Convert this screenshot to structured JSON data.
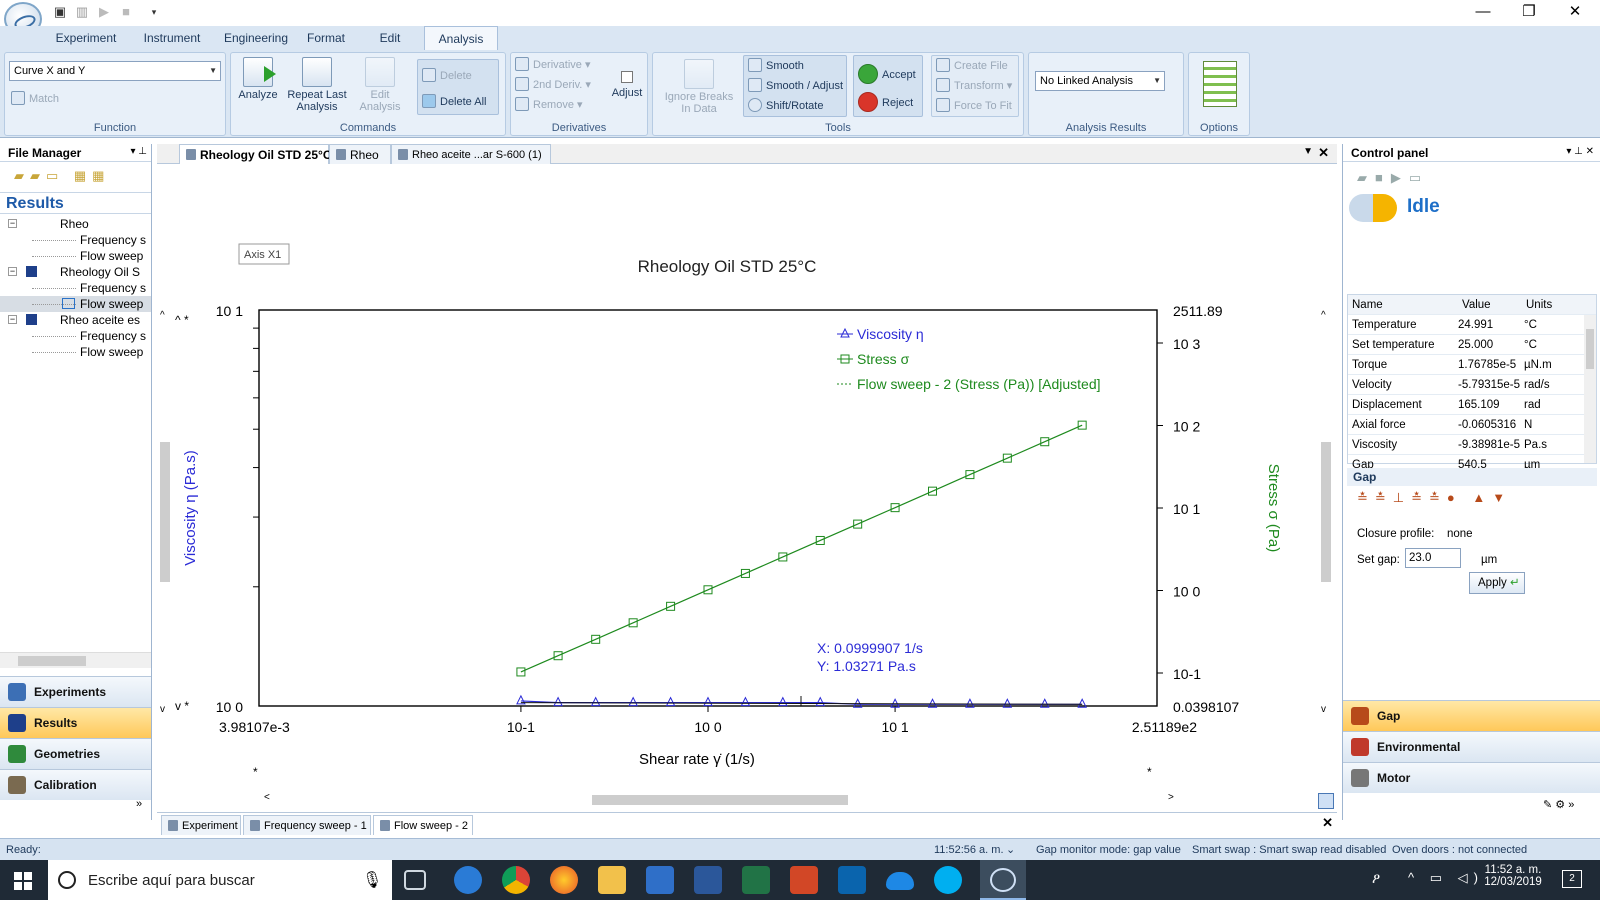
{
  "ribbon": {
    "tabs": [
      "Experiment",
      "Instrument",
      "Engineering",
      "Format",
      "Edit",
      "Analysis"
    ],
    "active_tab": "Analysis",
    "function": {
      "combo_value": "Curve X and Y",
      "match_label": "Match",
      "group_label": "Function"
    },
    "commands": {
      "analyze": "Analyze",
      "repeat_last_1": "Repeat Last",
      "repeat_last_2": "Analysis",
      "edit_1": "Edit",
      "edit_2": "Analysis",
      "delete": "Delete",
      "delete_all": "Delete All",
      "group_label": "Commands"
    },
    "derivatives": {
      "derivative": "Derivative",
      "second_deriv": "2nd Deriv.",
      "remove": "Remove",
      "adjust": "Adjust",
      "group_label": "Derivatives"
    },
    "tools": {
      "ignore_1": "Ignore Breaks",
      "ignore_2": "In Data",
      "smooth": "Smooth",
      "smooth_adjust": "Smooth / Adjust",
      "shift_rotate": "Shift/Rotate",
      "accept": "Accept",
      "reject": "Reject",
      "create_file": "Create File",
      "transform": "Transform",
      "force_to_fit": "Force To Fit",
      "group_label": "Tools"
    },
    "analysis_results": {
      "combo_value": "No Linked Analysis",
      "group_label": "Analysis Results"
    },
    "options": {
      "group_label": "Options"
    }
  },
  "file_manager": {
    "title": "File Manager",
    "results_header": "Results",
    "tree": [
      {
        "label": "Rheo",
        "level": 0
      },
      {
        "label": "Frequency s",
        "level": 1
      },
      {
        "label": "Flow sweep",
        "level": 1
      },
      {
        "label": "Rheology Oil S",
        "level": 0
      },
      {
        "label": "Frequency s",
        "level": 1
      },
      {
        "label": "Flow sweep",
        "level": 1
      },
      {
        "label": "Rheo aceite es",
        "level": 0
      },
      {
        "label": "Frequency s",
        "level": 1
      },
      {
        "label": "Flow sweep",
        "level": 1
      }
    ],
    "nav": [
      "Experiments",
      "Results",
      "Geometries",
      "Calibration"
    ],
    "nav_selected": "Results"
  },
  "doc": {
    "tabs": [
      "Rheology Oil STD 25°C",
      "Rheo",
      "Rheo aceite ...ar S-600 (1)"
    ],
    "bottom_tabs": [
      "Experiment",
      "Frequency sweep - 1",
      "Flow sweep - 2"
    ]
  },
  "chart_data": {
    "type": "line",
    "title": "Rheology Oil STD 25°C",
    "axis_tag": "Axis X1",
    "xlabel": "Shear rate  γ̇  (1/s)",
    "ylabel_left": "Viscosity  η  (Pa.s)",
    "ylabel_right": "Stress  σ  (Pa)",
    "x_scale": "log",
    "y_left_scale": "log",
    "y_right_scale": "log",
    "xlim": [
      0.00398107,
      251.189
    ],
    "ylim_left": [
      1,
      10
    ],
    "ylim_right": [
      0.0398107,
      2511.89
    ],
    "x_min_label": "3.98107e-3",
    "x_max_label": "2.51189e2",
    "x_ticks": [
      "10-1",
      "10 0",
      "10 1"
    ],
    "y_left_top": "10 1",
    "y_left_bottom": "10 0",
    "y_right_top": "2511.89",
    "y_right_bottom": "0.0398107",
    "y_right_ticks": [
      "10 3",
      "10 2",
      "10 1",
      "10 0",
      "10-1"
    ],
    "legend": [
      "Viscosity η",
      "Stress σ",
      "Flow sweep - 2 (Stress (Pa)) [Adjusted]"
    ],
    "x": [
      0.1,
      0.158,
      0.251,
      0.398,
      0.631,
      1.0,
      1.585,
      2.512,
      3.981,
      6.31,
      10.0,
      15.85,
      25.12,
      39.81,
      63.1,
      100.0
    ],
    "series": [
      {
        "name": "Viscosity η",
        "axis": "left",
        "color": "#2b2bd6",
        "values": [
          1.03,
          1.02,
          1.02,
          1.02,
          1.02,
          1.02,
          1.02,
          1.02,
          1.02,
          1.01,
          1.01,
          1.01,
          1.01,
          1.01,
          1.01,
          1.01
        ]
      },
      {
        "name": "Stress σ",
        "axis": "right",
        "color": "#1e8a1e",
        "values": [
          0.103,
          0.162,
          0.256,
          0.406,
          0.643,
          1.02,
          1.61,
          2.55,
          4.04,
          6.38,
          10.1,
          16.0,
          25.4,
          40.2,
          63.6,
          101.0
        ]
      }
    ],
    "cursor_x": "X: 0.0999907 1/s",
    "cursor_y": "Y: 1.03271 Pa.s"
  },
  "control_panel": {
    "title": "Control panel",
    "state": "Idle",
    "columns": [
      "Name",
      "Value",
      "Units"
    ],
    "rows": [
      [
        "Temperature",
        "24.991",
        "°C"
      ],
      [
        "Set temperature",
        "25.000",
        "°C"
      ],
      [
        "Torque",
        "1.76785e-5",
        "µN.m"
      ],
      [
        "Velocity",
        "-5.79315e-5",
        "rad/s"
      ],
      [
        "Displacement",
        "165.109",
        "rad"
      ],
      [
        "Axial force",
        "-0.0605316",
        "N"
      ],
      [
        "Viscosity",
        "-9.38981e-5",
        "Pa.s"
      ],
      [
        "Gap",
        "540.5",
        "µm"
      ]
    ],
    "gap": {
      "title": "Gap",
      "closure_label": "Closure profile:",
      "closure_value": "none",
      "setgap_label": "Set gap:",
      "setgap_value": "23.0",
      "unit": "µm",
      "apply": "Apply"
    },
    "nav": [
      "Gap",
      "Environmental",
      "Motor"
    ]
  },
  "status": {
    "ready": "Ready:",
    "time": "11:52:56 a. m.",
    "gap_monitor": "Gap monitor mode: gap value",
    "smart_swap": "Smart swap : Smart swap read disabled",
    "oven": "Oven doors : not connected"
  },
  "taskbar": {
    "search_placeholder": "Escribe aquí para buscar",
    "clock_time": "11:52 a. m.",
    "clock_date": "12/03/2019",
    "notif_count": "2"
  }
}
